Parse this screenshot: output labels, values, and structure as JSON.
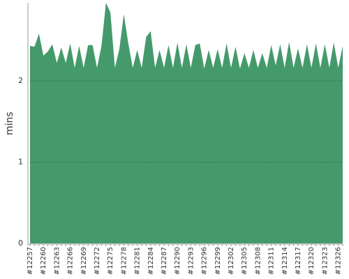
{
  "chart_data": {
    "type": "area",
    "y_label": "mins",
    "categories": [
      "#12257",
      null,
      null,
      "#12260",
      null,
      null,
      "#12263",
      null,
      null,
      "#12266",
      null,
      null,
      "#12269",
      null,
      null,
      "#12272",
      null,
      null,
      "#12275",
      null,
      null,
      "#12278",
      null,
      null,
      "#12281",
      null,
      null,
      "#12284",
      null,
      null,
      "#12287",
      null,
      null,
      "#12290",
      null,
      null,
      "#12293",
      null,
      null,
      "#12296",
      null,
      null,
      "#12299",
      null,
      null,
      "#12302",
      null,
      null,
      "#12305",
      null,
      null,
      "#12308",
      null,
      null,
      "#12311",
      null,
      null,
      "#12314",
      null,
      null,
      "#12317",
      null,
      null,
      "#12320",
      null,
      null,
      "#12323",
      null,
      null,
      "#12326",
      null
    ],
    "values": [
      2.43,
      2.42,
      2.58,
      2.31,
      2.36,
      2.45,
      2.22,
      2.41,
      2.22,
      2.46,
      2.16,
      2.43,
      2.16,
      2.44,
      2.44,
      2.16,
      2.43,
      2.96,
      2.84,
      2.16,
      2.39,
      2.82,
      2.46,
      2.16,
      2.38,
      2.16,
      2.54,
      2.61,
      2.16,
      2.38,
      2.16,
      2.44,
      2.16,
      2.47,
      2.16,
      2.45,
      2.16,
      2.44,
      2.46,
      2.15,
      2.38,
      2.16,
      2.39,
      2.16,
      2.46,
      2.16,
      2.42,
      2.15,
      2.34,
      2.16,
      2.38,
      2.16,
      2.34,
      2.16,
      2.44,
      2.19,
      2.45,
      2.16,
      2.48,
      2.16,
      2.4,
      2.16,
      2.45,
      2.16,
      2.46,
      2.16,
      2.45,
      2.16,
      2.47,
      2.16,
      2.43
    ],
    "color": "#459a6c",
    "ylim": [
      0,
      2.96
    ],
    "yticks": [
      0,
      1,
      2
    ],
    "grid": true
  }
}
